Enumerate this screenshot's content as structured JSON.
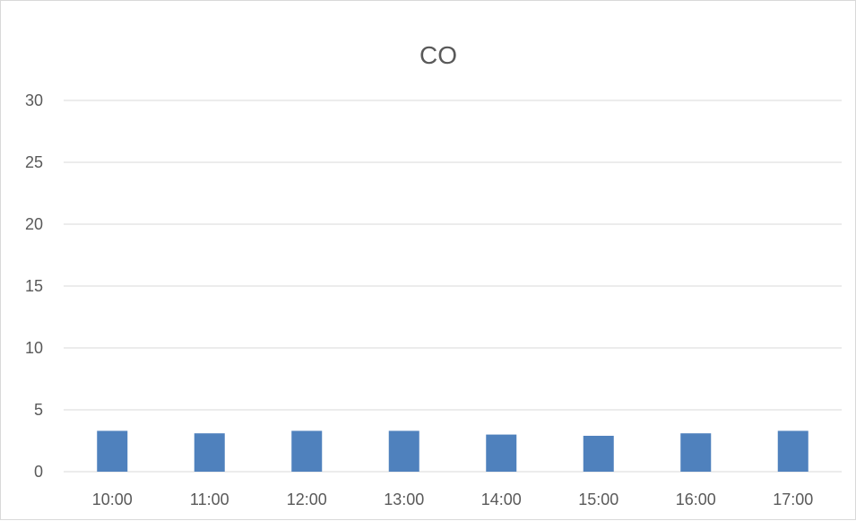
{
  "chart_data": {
    "type": "bar",
    "title": "CO",
    "xlabel": "",
    "ylabel": "",
    "categories": [
      "10:00",
      "11:00",
      "12:00",
      "13:00",
      "14:00",
      "15:00",
      "16:00",
      "17:00"
    ],
    "values": [
      3.3,
      3.1,
      3.3,
      3.3,
      3.0,
      2.9,
      3.1,
      3.3
    ],
    "ylim": [
      0,
      30
    ],
    "yticks": [
      0,
      5,
      10,
      15,
      20,
      25,
      30
    ],
    "grid": true,
    "legend": "none",
    "colors": {
      "bar": "#4f81bd",
      "grid": "#d9d9d9",
      "text": "#595959"
    }
  }
}
